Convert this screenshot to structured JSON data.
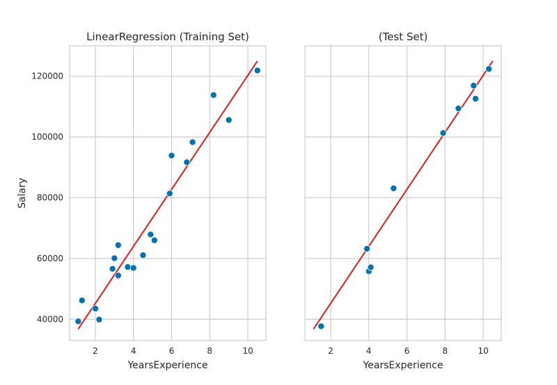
{
  "chart_data": [
    {
      "type": "scatter",
      "title": "LinearRegression (Training Set)",
      "xlabel": "YearsExperience",
      "ylabel": "Salary",
      "xlim": [
        0.65,
        10.95
      ],
      "ylim": [
        33000,
        130000
      ],
      "xticks": [
        2,
        4,
        6,
        8,
        10
      ],
      "yticks": [
        40000,
        60000,
        80000,
        100000,
        120000
      ],
      "grid": true,
      "point_color": "#0072b2",
      "line_color": "#e41a1c",
      "points": [
        {
          "x": 1.1,
          "y": 39300
        },
        {
          "x": 1.3,
          "y": 46200
        },
        {
          "x": 2.0,
          "y": 43500
        },
        {
          "x": 2.2,
          "y": 39900
        },
        {
          "x": 2.9,
          "y": 56600
        },
        {
          "x": 3.0,
          "y": 60100
        },
        {
          "x": 3.2,
          "y": 54400
        },
        {
          "x": 3.2,
          "y": 64400
        },
        {
          "x": 3.7,
          "y": 57200
        },
        {
          "x": 4.0,
          "y": 56900
        },
        {
          "x": 4.5,
          "y": 61100
        },
        {
          "x": 4.9,
          "y": 67900
        },
        {
          "x": 5.1,
          "y": 66000
        },
        {
          "x": 5.9,
          "y": 81400
        },
        {
          "x": 6.0,
          "y": 93900
        },
        {
          "x": 6.8,
          "y": 91700
        },
        {
          "x": 7.1,
          "y": 98300
        },
        {
          "x": 8.2,
          "y": 113800
        },
        {
          "x": 9.0,
          "y": 105600
        },
        {
          "x": 10.5,
          "y": 121900
        }
      ],
      "fit_line": [
        {
          "x": 1.1,
          "y": 36800
        },
        {
          "x": 10.5,
          "y": 125000
        }
      ]
    },
    {
      "type": "scatter",
      "title": "(Test Set)",
      "xlabel": "YearsExperience",
      "ylabel": "",
      "xlim": [
        0.65,
        10.95
      ],
      "ylim": [
        33000,
        130000
      ],
      "xticks": [
        2,
        4,
        6,
        8,
        10
      ],
      "yticks": [
        40000,
        60000,
        80000,
        100000,
        120000
      ],
      "grid": true,
      "point_color": "#0072b2",
      "line_color": "#e41a1c",
      "points": [
        {
          "x": 1.5,
          "y": 37700
        },
        {
          "x": 3.9,
          "y": 63200
        },
        {
          "x": 4.0,
          "y": 55800
        },
        {
          "x": 4.1,
          "y": 57100
        },
        {
          "x": 5.3,
          "y": 83100
        },
        {
          "x": 7.9,
          "y": 101300
        },
        {
          "x": 8.7,
          "y": 109400
        },
        {
          "x": 9.5,
          "y": 116900
        },
        {
          "x": 9.6,
          "y": 112600
        },
        {
          "x": 10.3,
          "y": 122400
        }
      ],
      "fit_line": [
        {
          "x": 1.1,
          "y": 36800
        },
        {
          "x": 10.5,
          "y": 125000
        }
      ]
    }
  ]
}
